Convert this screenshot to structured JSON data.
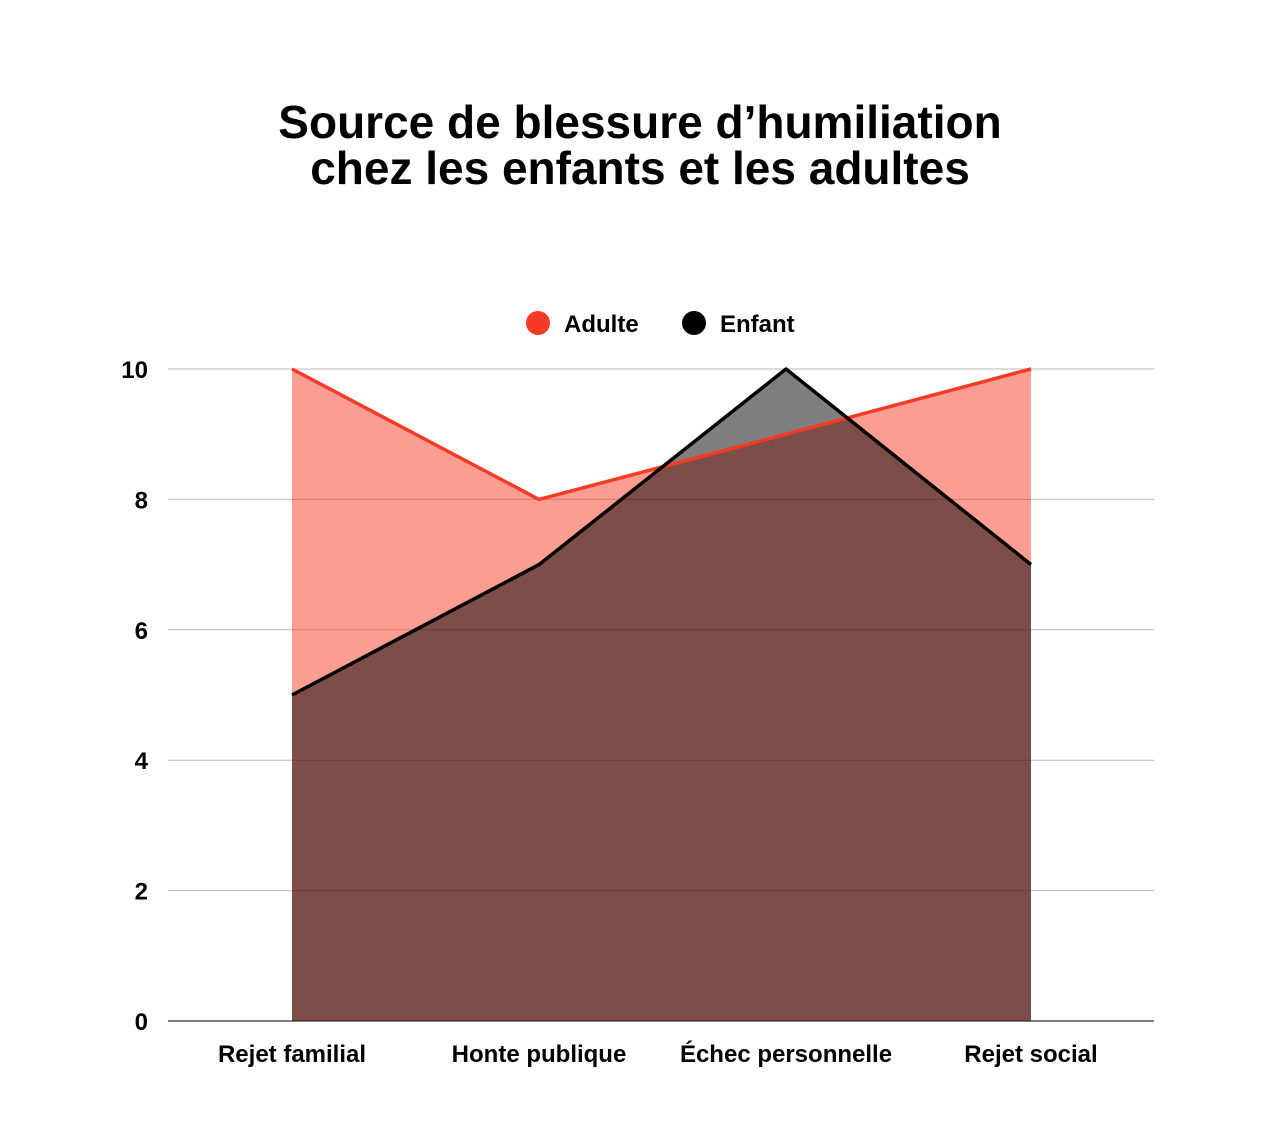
{
  "chart_data": {
    "type": "area",
    "title_lines": [
      "Source de blessure d’humiliation",
      "chez les enfants et les adultes"
    ],
    "categories": [
      "Rejet familial",
      "Honte publique",
      "Échec personnelle",
      "Rejet social"
    ],
    "series": [
      {
        "name": "Adulte",
        "values": [
          10,
          8,
          9,
          10
        ],
        "color": "#f53b26",
        "fill": "#f53b26",
        "fill_opacity": 0.5
      },
      {
        "name": "Enfant",
        "values": [
          5,
          7,
          10,
          7
        ],
        "color": "#000000",
        "fill": "#000000",
        "fill_opacity": 0.5
      }
    ],
    "ylim": [
      0,
      10
    ],
    "yticks": [
      "0",
      "2",
      "4",
      "6",
      "8",
      "10"
    ],
    "grid": true,
    "legend_position": "top-center",
    "xlabel": "",
    "ylabel": ""
  }
}
